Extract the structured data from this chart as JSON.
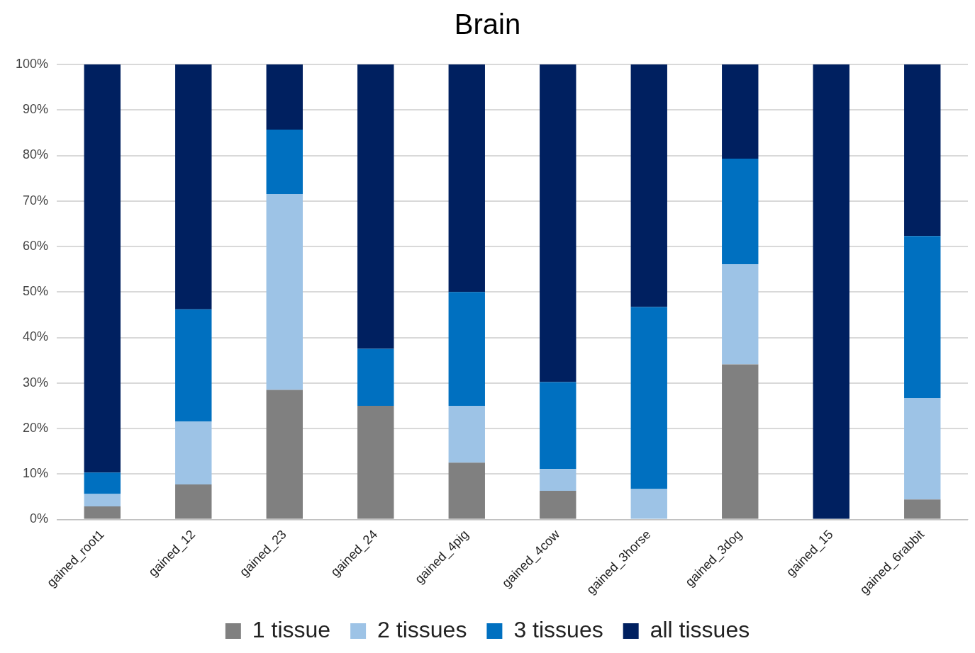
{
  "chart_data": {
    "type": "bar",
    "title": "Brain",
    "stacked": true,
    "grid": "y",
    "legend": "bottom",
    "categories": [
      "gained_root1",
      "gained_12",
      "gained_23",
      "gained_24",
      "gained_4pig",
      "gained_4cow",
      "gained_3horse",
      "gained_3dog",
      "gained_15",
      "gained_6rabbit"
    ],
    "series": [
      {
        "name": "1 tissue",
        "color": "#808080",
        "values": [
          2.9,
          7.7,
          28.5,
          25,
          12.5,
          6.3,
          0,
          34.1,
          0,
          4.4
        ]
      },
      {
        "name": "2 tissues",
        "color": "#9dc3e6",
        "values": [
          2.7,
          13.8,
          43,
          0,
          12.5,
          4.8,
          6.7,
          22,
          0,
          22.3
        ]
      },
      {
        "name": "3 tissues",
        "color": "#0070c0",
        "values": [
          4.7,
          24.7,
          14.2,
          12.5,
          25,
          19.1,
          40,
          23.2,
          0,
          35.6
        ]
      },
      {
        "name": "all tissues",
        "color": "#002060",
        "values": [
          89.7,
          53.8,
          14.3,
          62.5,
          50,
          69.8,
          53.3,
          20.7,
          100,
          37.7
        ]
      }
    ],
    "ylim": [
      0,
      100
    ],
    "yticks": [
      {
        "value": 0,
        "label": "0%"
      },
      {
        "value": 10,
        "label": "10%"
      },
      {
        "value": 20,
        "label": "20%"
      },
      {
        "value": 30,
        "label": "30%"
      },
      {
        "value": 40,
        "label": "40%"
      },
      {
        "value": 50,
        "label": "50%"
      },
      {
        "value": 60,
        "label": "60%"
      },
      {
        "value": 70,
        "label": "70%"
      },
      {
        "value": 80,
        "label": "80%"
      },
      {
        "value": 90,
        "label": "90%"
      },
      {
        "value": 100,
        "label": "100%"
      }
    ]
  }
}
